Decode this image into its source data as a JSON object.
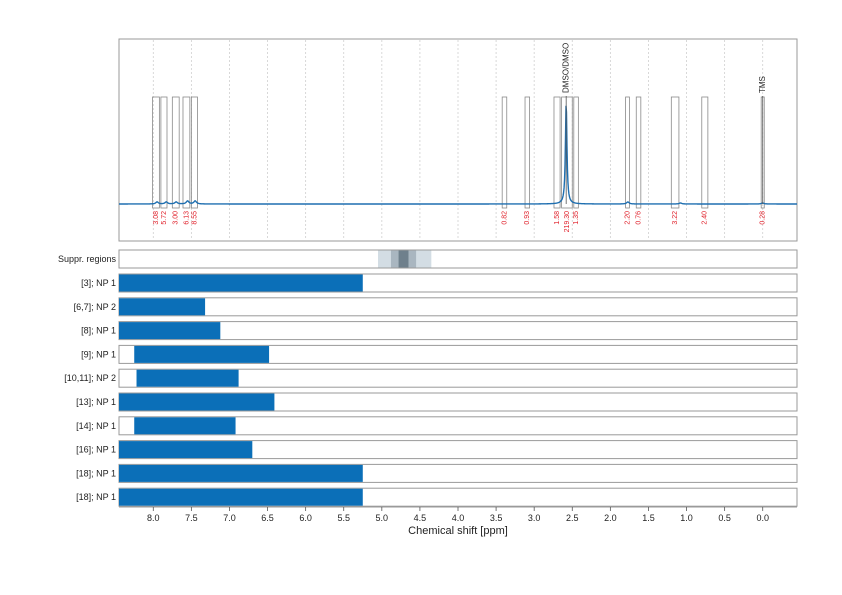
{
  "chart_data": {
    "type": "nmr-spectrum-with-region-bars",
    "x_axis": {
      "label": "Chemical shift [ppm]",
      "range": [
        8.45,
        -0.45
      ],
      "reversed": true,
      "ticks": [
        8.0,
        7.5,
        7.0,
        6.5,
        6.0,
        5.5,
        5.0,
        4.5,
        4.0,
        3.5,
        3.0,
        2.5,
        2.0,
        1.5,
        1.0,
        0.5,
        0.0
      ],
      "tick_labels": [
        "8.0",
        "7.5",
        "7.0",
        "6.5",
        "6.0",
        "5.5",
        "5.0",
        "4.5",
        "4.0",
        "3.5",
        "3.0",
        "2.5",
        "2.0",
        "1.5",
        "1.0",
        "0.5",
        "0.0"
      ]
    },
    "grid": true,
    "line_color": "#1f6fb0",
    "bar_color": "#0b6fb8",
    "integral_label_color": "#e0202a",
    "spectrum_peaks": [
      {
        "ppm": 7.95,
        "height": 0.02
      },
      {
        "ppm": 7.83,
        "height": 0.02
      },
      {
        "ppm": 7.7,
        "height": 0.02
      },
      {
        "ppm": 7.55,
        "height": 0.03
      },
      {
        "ppm": 7.45,
        "height": 0.03
      },
      {
        "ppm": 2.58,
        "height": 1.0
      },
      {
        "ppm": 1.77,
        "height": 0.02
      },
      {
        "ppm": 1.08,
        "height": 0.01
      },
      {
        "ppm": 0.0,
        "height": 0.01
      }
    ],
    "integration_regions": [
      {
        "from": 8.01,
        "to": 7.92,
        "label": "3.08"
      },
      {
        "from": 7.9,
        "to": 7.82,
        "label": "5.72"
      },
      {
        "from": 7.75,
        "to": 7.66,
        "label": "3.00"
      },
      {
        "from": 7.61,
        "to": 7.52,
        "label": "6.13"
      },
      {
        "from": 7.5,
        "to": 7.42,
        "label": "8.55"
      },
      {
        "from": 3.42,
        "to": 3.36,
        "label": "0.82"
      },
      {
        "from": 3.12,
        "to": 3.06,
        "label": "0.93"
      },
      {
        "from": 2.74,
        "to": 2.66,
        "label": "1.58"
      },
      {
        "from": 2.64,
        "to": 2.5,
        "label": "219.30"
      },
      {
        "from": 2.48,
        "to": 2.42,
        "label": "1.35"
      },
      {
        "from": 1.8,
        "to": 1.75,
        "label": "2.20"
      },
      {
        "from": 1.66,
        "to": 1.6,
        "label": "0.76"
      },
      {
        "from": 1.2,
        "to": 1.1,
        "label": "3.22"
      },
      {
        "from": 0.8,
        "to": 0.72,
        "label": "2.40"
      },
      {
        "from": 0.02,
        "to": -0.02,
        "label": "0.28"
      }
    ],
    "peak_annotations": [
      {
        "ppm": 2.58,
        "label": "DMSO/DMSO"
      },
      {
        "ppm": 0.0,
        "label": "TMS"
      }
    ],
    "suppressed_regions": {
      "label": "Suppr. regions",
      "bands": [
        {
          "from": 5.05,
          "to": 4.35,
          "shade": "#d3dde4"
        },
        {
          "from": 4.88,
          "to": 4.55,
          "shade": "#a9b6c0"
        },
        {
          "from": 4.78,
          "to": 4.65,
          "shade": "#6f808c"
        }
      ]
    },
    "rows": [
      {
        "label": "[3]; NP 1",
        "from": 8.45,
        "to": 5.25
      },
      {
        "label": "[6,7]; NP 2",
        "from": 8.45,
        "to": 7.32
      },
      {
        "label": "[8]; NP 1",
        "from": 8.45,
        "to": 7.12
      },
      {
        "label": "[9]; NP 1",
        "from": 8.25,
        "to": 6.48
      },
      {
        "label": "[10,11]; NP 2",
        "from": 8.22,
        "to": 6.88
      },
      {
        "label": "[13]; NP 1",
        "from": 8.45,
        "to": 6.41
      },
      {
        "label": "[14]; NP 1",
        "from": 8.25,
        "to": 6.92
      },
      {
        "label": "[16]; NP 1",
        "from": 8.45,
        "to": 6.7
      },
      {
        "label": "[18]; NP 1",
        "from": 8.45,
        "to": 5.25
      },
      {
        "label": "[18]; NP 1",
        "from": 8.45,
        "to": 5.25
      }
    ]
  }
}
